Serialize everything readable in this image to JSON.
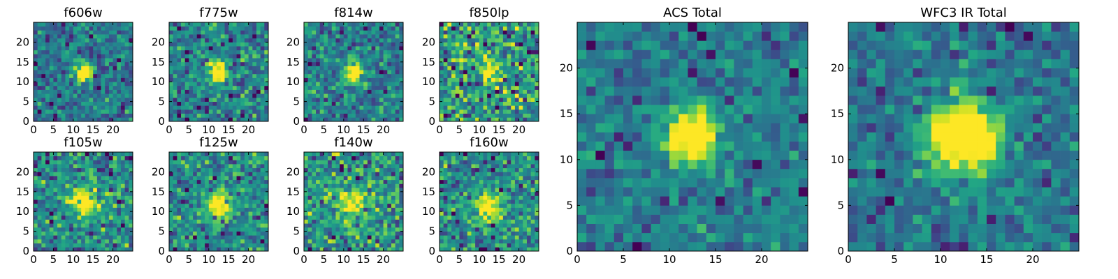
{
  "chart_data": [
    {
      "type": "heatmap",
      "title": "f606w",
      "x_ticks": [
        "0",
        "5",
        "10",
        "15",
        "20"
      ],
      "y_ticks": [
        "0",
        "5",
        "10",
        "15",
        "20"
      ],
      "xlim": [
        0,
        25
      ],
      "ylim": [
        0,
        25
      ],
      "grid_size": 25,
      "source_center": [
        12,
        12
      ],
      "source_radius": 1.5,
      "source_peak": 1.0,
      "noise_level": 0.5,
      "background": 0.4,
      "seed": 11
    },
    {
      "type": "heatmap",
      "title": "f775w",
      "x_ticks": [
        "0",
        "5",
        "10",
        "15",
        "20"
      ],
      "y_ticks": [
        "0",
        "5",
        "10",
        "15",
        "20"
      ],
      "xlim": [
        0,
        25
      ],
      "ylim": [
        0,
        25
      ],
      "grid_size": 25,
      "source_center": [
        12,
        12
      ],
      "source_radius": 1.8,
      "source_peak": 0.9,
      "noise_level": 0.55,
      "background": 0.45,
      "seed": 23
    },
    {
      "type": "heatmap",
      "title": "f814w",
      "x_ticks": [
        "0",
        "5",
        "10",
        "15",
        "20"
      ],
      "y_ticks": [
        "0",
        "5",
        "10",
        "15",
        "20"
      ],
      "xlim": [
        0,
        25
      ],
      "ylim": [
        0,
        25
      ],
      "grid_size": 25,
      "source_center": [
        12,
        12
      ],
      "source_radius": 1.6,
      "source_peak": 0.9,
      "noise_level": 0.5,
      "background": 0.45,
      "seed": 37
    },
    {
      "type": "heatmap",
      "title": "f850lp",
      "x_ticks": [
        "0",
        "5",
        "10",
        "15",
        "20"
      ],
      "y_ticks": [
        "0",
        "5",
        "10",
        "15",
        "20"
      ],
      "xlim": [
        0,
        25
      ],
      "ylim": [
        0,
        25
      ],
      "grid_size": 25,
      "source_center": [
        12,
        12
      ],
      "source_radius": 1.8,
      "source_peak": 0.5,
      "noise_level": 0.75,
      "background": 0.55,
      "seed": 41
    },
    {
      "type": "heatmap",
      "title": "f105w",
      "x_ticks": [
        "0",
        "5",
        "10",
        "15",
        "20"
      ],
      "y_ticks": [
        "0",
        "5",
        "10",
        "15",
        "20"
      ],
      "xlim": [
        0,
        25
      ],
      "ylim": [
        0,
        25
      ],
      "grid_size": 25,
      "source_center": [
        12,
        12
      ],
      "source_radius": 2.4,
      "source_peak": 0.7,
      "noise_level": 0.6,
      "background": 0.5,
      "seed": 53
    },
    {
      "type": "heatmap",
      "title": "f125w",
      "x_ticks": [
        "0",
        "5",
        "10",
        "15",
        "20"
      ],
      "y_ticks": [
        "0",
        "5",
        "10",
        "15",
        "20"
      ],
      "xlim": [
        0,
        25
      ],
      "ylim": [
        0,
        25
      ],
      "grid_size": 25,
      "source_center": [
        12,
        11
      ],
      "source_radius": 2.4,
      "source_peak": 0.7,
      "noise_level": 0.55,
      "background": 0.5,
      "seed": 67
    },
    {
      "type": "heatmap",
      "title": "f140w",
      "x_ticks": [
        "0",
        "5",
        "10",
        "15",
        "20"
      ],
      "y_ticks": [
        "0",
        "5",
        "10",
        "15",
        "20"
      ],
      "xlim": [
        0,
        25
      ],
      "ylim": [
        0,
        25
      ],
      "grid_size": 25,
      "source_center": [
        12,
        12
      ],
      "source_radius": 2.2,
      "source_peak": 0.55,
      "noise_level": 0.65,
      "background": 0.55,
      "seed": 79
    },
    {
      "type": "heatmap",
      "title": "f160w",
      "x_ticks": [
        "0",
        "5",
        "10",
        "15",
        "20"
      ],
      "y_ticks": [
        "0",
        "5",
        "10",
        "15",
        "20"
      ],
      "xlim": [
        0,
        25
      ],
      "ylim": [
        0,
        25
      ],
      "grid_size": 25,
      "source_center": [
        12,
        11
      ],
      "source_radius": 2.4,
      "source_peak": 0.7,
      "noise_level": 0.6,
      "background": 0.5,
      "seed": 83
    },
    {
      "type": "heatmap",
      "title": "ACS Total",
      "x_ticks": [
        "0",
        "5",
        "10",
        "15",
        "20"
      ],
      "y_ticks": [
        "0",
        "5",
        "10",
        "15",
        "20"
      ],
      "xlim": [
        0,
        25
      ],
      "ylim": [
        0,
        25
      ],
      "grid_size": 25,
      "source_center": [
        12,
        12
      ],
      "source_radius": 1.9,
      "source_peak": 1.0,
      "noise_level": 0.38,
      "background": 0.42,
      "seed": 97
    },
    {
      "type": "heatmap",
      "title": "WFC3 IR Total",
      "x_ticks": [
        "0",
        "5",
        "10",
        "15",
        "20"
      ],
      "y_ticks": [
        "0",
        "5",
        "10",
        "15",
        "20"
      ],
      "xlim": [
        0,
        25
      ],
      "ylim": [
        0,
        25
      ],
      "grid_size": 25,
      "source_center": [
        12,
        12
      ],
      "source_radius": 2.6,
      "source_peak": 1.0,
      "noise_level": 0.38,
      "background": 0.42,
      "seed": 101
    }
  ],
  "colormap": "viridis"
}
